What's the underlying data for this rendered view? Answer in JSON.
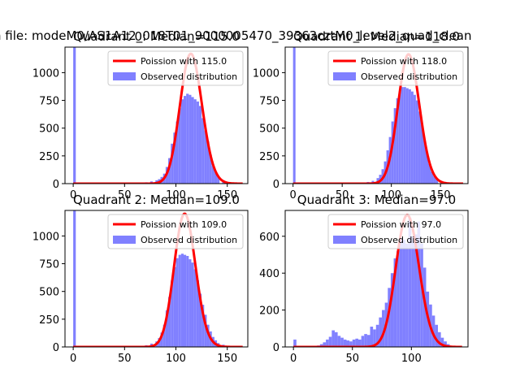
{
  "figure": {
    "suptitle": "n file: modeM0/AS1A12_018T01_9000005470_39363cztM0_level2_quad_clean"
  },
  "chart_data": [
    {
      "type": "bar",
      "title": "Quadrant 0: Median=115.0",
      "xlabel": "",
      "ylabel": "",
      "xlim": [
        -8,
        170
      ],
      "ylim": [
        0,
        1230
      ],
      "xticks": [
        0,
        50,
        100,
        150
      ],
      "yticks": [
        0,
        250,
        500,
        750,
        1000
      ],
      "legend": {
        "placement": "top-right",
        "entries": [
          "Poission with 115.0",
          "Observed distribution"
        ]
      },
      "poisson_mean": 115.0,
      "poisson_peak": 1170,
      "histogram": {
        "name": "Observed distribution",
        "bin_width": 2.5,
        "bins": [
          0,
          60,
          65,
          70,
          75,
          80,
          82.5,
          85,
          87.5,
          90,
          92.5,
          95,
          97.5,
          100,
          102.5,
          105,
          107.5,
          110,
          112.5,
          115,
          117.5,
          120,
          122.5,
          125,
          127.5,
          130,
          132.5,
          135,
          137.5,
          140,
          145,
          150,
          155,
          160
        ],
        "values": [
          1230,
          3,
          8,
          12,
          20,
          30,
          40,
          60,
          90,
          150,
          230,
          360,
          460,
          560,
          680,
          760,
          790,
          810,
          800,
          780,
          760,
          740,
          700,
          590,
          480,
          380,
          260,
          160,
          100,
          60,
          30,
          15,
          6,
          2
        ]
      }
    },
    {
      "type": "bar",
      "title": "Quadrant 1: Median=118.0",
      "xlabel": "",
      "ylabel": "",
      "xlim": [
        -8,
        178
      ],
      "ylim": [
        0,
        1230
      ],
      "xticks": [
        0,
        50,
        100,
        150
      ],
      "yticks": [
        0,
        250,
        500,
        750,
        1000
      ],
      "legend": {
        "placement": "top-right",
        "entries": [
          "Poission with 118.0",
          "Observed distribution"
        ]
      },
      "poisson_mean": 118.0,
      "poisson_peak": 1165,
      "histogram": {
        "name": "Observed distribution",
        "bin_width": 2.5,
        "bins": [
          0,
          65,
          70,
          75,
          80,
          85,
          87.5,
          90,
          92.5,
          95,
          97.5,
          100,
          102.5,
          105,
          107.5,
          110,
          112.5,
          115,
          117.5,
          120,
          122.5,
          125,
          127.5,
          130,
          132.5,
          135,
          137.5,
          140,
          142.5,
          145,
          150,
          155,
          160,
          165
        ],
        "values": [
          1230,
          3,
          8,
          15,
          25,
          50,
          80,
          130,
          200,
          300,
          420,
          560,
          680,
          770,
          830,
          870,
          870,
          860,
          850,
          830,
          800,
          750,
          650,
          530,
          400,
          280,
          180,
          110,
          70,
          40,
          20,
          10,
          5,
          2
        ]
      }
    },
    {
      "type": "bar",
      "title": "Quadrant 2: Median=109.0",
      "xlabel": "",
      "ylabel": "",
      "xlim": [
        -8,
        170
      ],
      "ylim": [
        0,
        1230
      ],
      "xticks": [
        0,
        50,
        100,
        150
      ],
      "yticks": [
        0,
        250,
        500,
        750,
        1000
      ],
      "legend": {
        "placement": "top-right",
        "entries": [
          "Poission with 109.0",
          "Observed distribution"
        ]
      },
      "poisson_mean": 109.0,
      "poisson_peak": 1200,
      "histogram": {
        "name": "Observed distribution",
        "bin_width": 2.5,
        "bins": [
          0,
          60,
          65,
          70,
          75,
          80,
          82.5,
          85,
          87.5,
          90,
          92.5,
          95,
          97.5,
          100,
          102.5,
          105,
          107.5,
          110,
          112.5,
          115,
          117.5,
          120,
          122.5,
          125,
          127.5,
          130,
          132.5,
          135,
          137.5,
          140,
          145,
          150,
          155,
          160
        ],
        "values": [
          1230,
          3,
          8,
          15,
          30,
          50,
          80,
          130,
          200,
          330,
          450,
          600,
          720,
          800,
          830,
          840,
          830,
          820,
          790,
          760,
          700,
          600,
          480,
          380,
          290,
          200,
          140,
          90,
          60,
          35,
          20,
          10,
          5,
          2
        ]
      }
    },
    {
      "type": "bar",
      "title": "Quadrant 3: Median=97.0",
      "xlabel": "",
      "ylabel": "",
      "xlim": [
        -7,
        148
      ],
      "ylim": [
        0,
        740
      ],
      "xticks": [
        0,
        50,
        100
      ],
      "yticks": [
        0,
        200,
        400,
        600
      ],
      "legend": {
        "placement": "top-right",
        "entries": [
          "Poission with 97.0",
          "Observed distribution"
        ]
      },
      "poisson_mean": 97.0,
      "poisson_peak": 715,
      "histogram": {
        "name": "Observed distribution",
        "bin_width": 2.5,
        "bins": [
          0,
          20,
          22.5,
          25,
          27.5,
          30,
          32.5,
          35,
          37.5,
          40,
          42.5,
          45,
          47.5,
          50,
          52.5,
          55,
          57.5,
          60,
          62.5,
          65,
          67.5,
          70,
          72.5,
          75,
          77.5,
          80,
          82.5,
          85,
          87.5,
          90,
          92.5,
          95,
          97.5,
          100,
          102.5,
          105,
          107.5,
          110,
          112.5,
          115,
          117.5,
          120,
          122.5,
          125,
          127.5,
          130
        ],
        "values": [
          40,
          8,
          15,
          25,
          40,
          55,
          90,
          80,
          60,
          50,
          40,
          35,
          30,
          40,
          45,
          40,
          60,
          70,
          65,
          110,
          95,
          120,
          160,
          200,
          240,
          320,
          400,
          480,
          520,
          590,
          580,
          560,
          700,
          600,
          610,
          680,
          560,
          430,
          300,
          230,
          170,
          120,
          80,
          50,
          30,
          15
        ]
      }
    }
  ],
  "colors": {
    "poisson": "#ff0000",
    "histogram": "#8080ff",
    "axis": "#000000"
  }
}
